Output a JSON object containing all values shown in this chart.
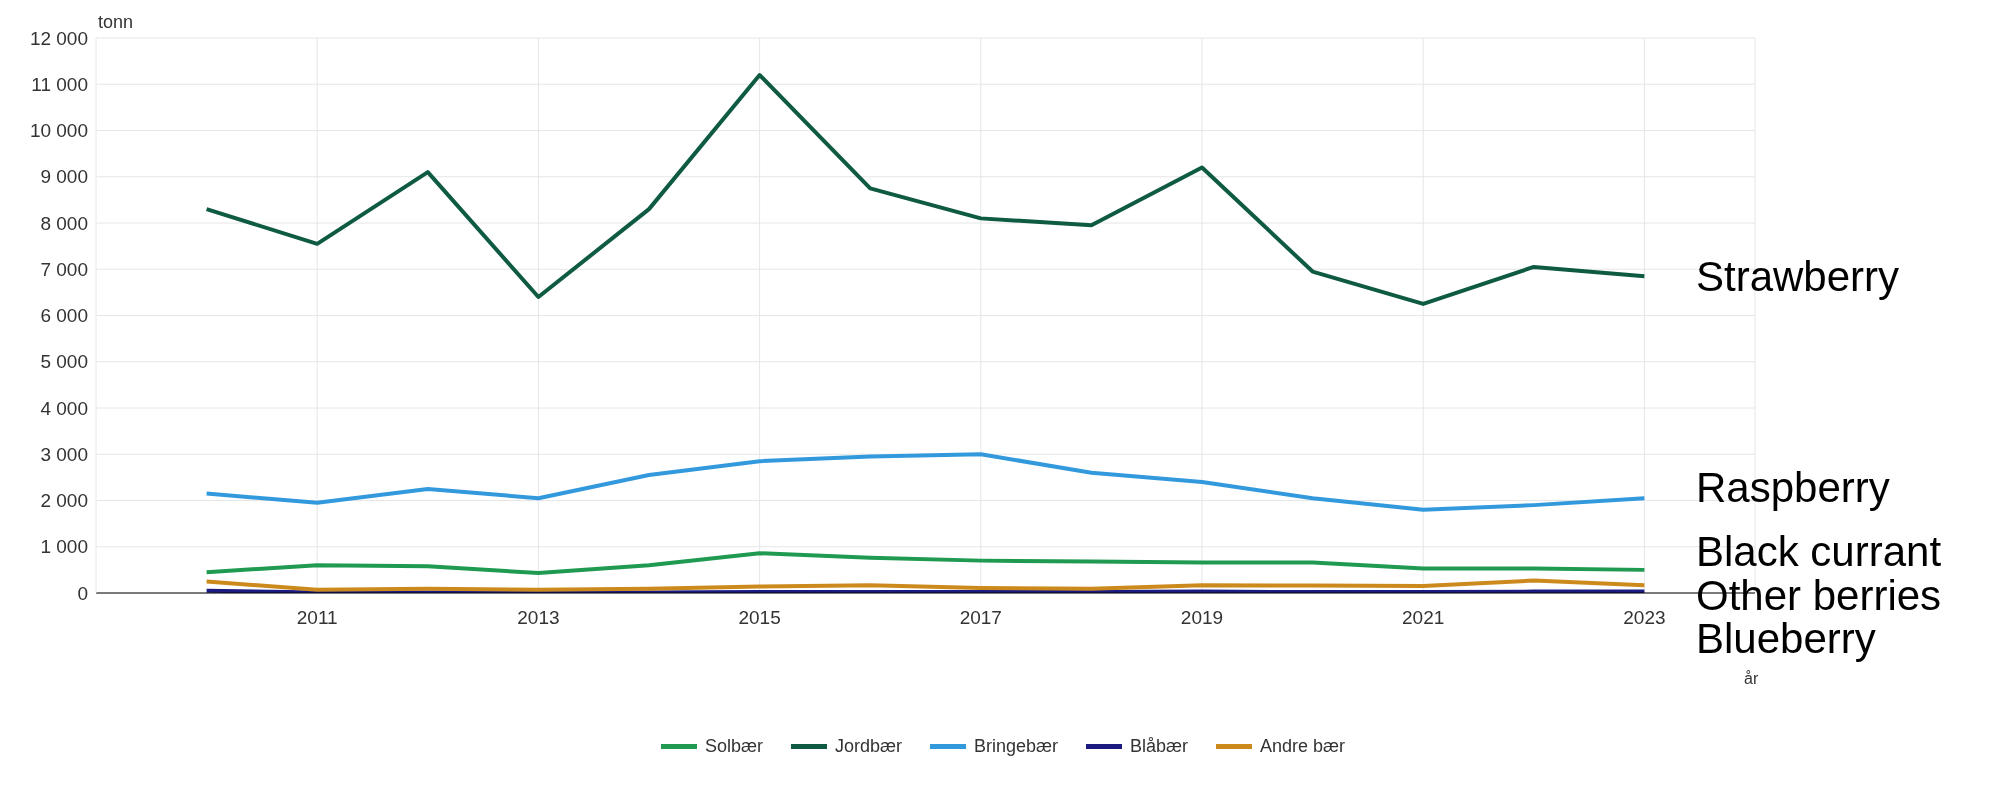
{
  "chart_data": {
    "type": "line",
    "xlabel": "år",
    "ylabel": "tonn",
    "x": [
      2010,
      2011,
      2012,
      2013,
      2014,
      2015,
      2016,
      2017,
      2018,
      2019,
      2020,
      2021,
      2022,
      2023
    ],
    "xlim": [
      2009,
      2024
    ],
    "xticks": [
      2011,
      2013,
      2015,
      2017,
      2019,
      2021,
      2023
    ],
    "ylim": [
      0,
      12000
    ],
    "yticks": [
      0,
      {
        "value": 1000,
        "label": "1 000"
      },
      {
        "value": 2000,
        "label": "2 000"
      },
      {
        "value": 3000,
        "label": "3 000"
      },
      {
        "value": 4000,
        "label": "4 000"
      },
      {
        "value": 5000,
        "label": "5 000"
      },
      {
        "value": 6000,
        "label": "6 000"
      },
      {
        "value": 7000,
        "label": "7 000"
      },
      {
        "value": 8000,
        "label": "8 000"
      },
      {
        "value": 9000,
        "label": "9 000"
      },
      {
        "value": 10000,
        "label": "10 000"
      },
      {
        "value": 11000,
        "label": "11 000"
      },
      {
        "value": 12000,
        "label": "12 000"
      }
    ],
    "grid": true,
    "legend": "bottom",
    "marker": "none",
    "line_style": "solid",
    "series": [
      {
        "name": "Solbær",
        "color": "#1f9a50",
        "values": [
          450,
          600,
          580,
          430,
          600,
          860,
          760,
          700,
          680,
          660,
          660,
          530,
          530,
          500
        ]
      },
      {
        "name": "Jordbær",
        "color": "#0e5a43",
        "values": [
          8300,
          7550,
          9100,
          6400,
          8300,
          11200,
          8750,
          8100,
          7950,
          9200,
          6950,
          6250,
          7050,
          6850
        ]
      },
      {
        "name": "Bringebær",
        "color": "#3399dd",
        "values": [
          2150,
          1950,
          2250,
          2050,
          2550,
          2850,
          2950,
          3000,
          2600,
          2400,
          2050,
          1800,
          1900,
          2050
        ]
      },
      {
        "name": "Blåbær",
        "color": "#1a1a80",
        "values": [
          50,
          10,
          10,
          10,
          10,
          20,
          20,
          20,
          20,
          30,
          20,
          20,
          30,
          30
        ]
      },
      {
        "name": "Andre bær",
        "color": "#cc8a1c",
        "values": [
          250,
          70,
          90,
          70,
          90,
          140,
          170,
          110,
          90,
          170,
          160,
          150,
          270,
          170
        ]
      }
    ],
    "annotations": [
      "Strawberry",
      "Raspberry",
      "Black currant",
      "Other berries",
      "Blueberry"
    ]
  }
}
